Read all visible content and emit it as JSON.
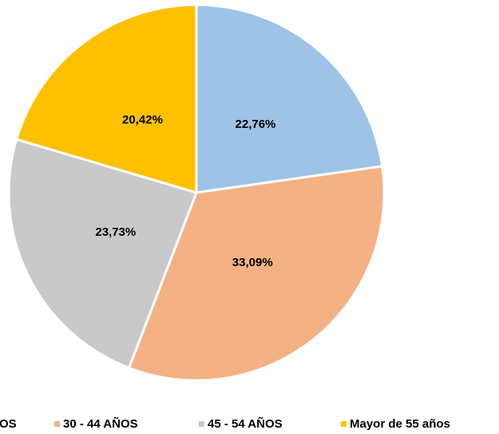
{
  "chart_data": {
    "type": "pie",
    "categories": [
      "OS",
      "30 - 44 AÑOS",
      "45 - 54 AÑOS",
      "Mayor de 55 años"
    ],
    "values": [
      22.76,
      33.09,
      23.73,
      20.42
    ],
    "value_labels": [
      "22,76%",
      "33,09%",
      "23,73%",
      "20,42%"
    ],
    "colors": [
      "#9dc3e6",
      "#f4b183",
      "#c9c9c9",
      "#ffc000"
    ],
    "legend": "bottom"
  }
}
